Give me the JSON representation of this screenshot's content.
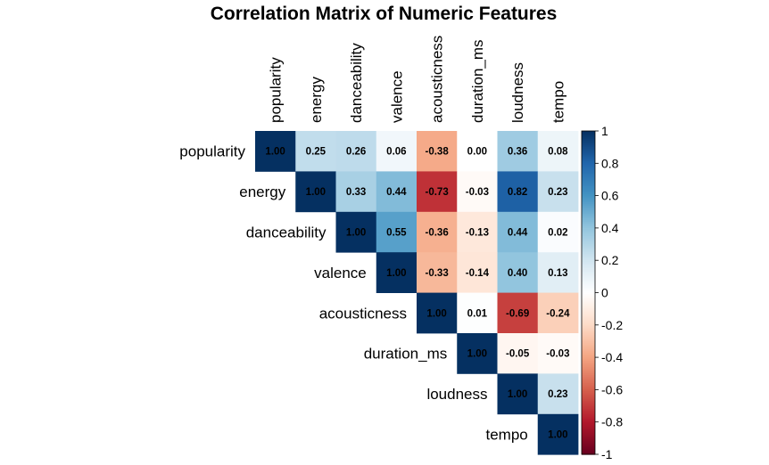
{
  "chart_data": {
    "type": "heatmap",
    "title": "Correlation Matrix of Numeric Features",
    "variables": [
      "popularity",
      "energy",
      "danceability",
      "valence",
      "acousticness",
      "duration_ms",
      "loudness",
      "tempo"
    ],
    "matrix": [
      [
        1.0,
        0.25,
        0.26,
        0.06,
        -0.38,
        0.0,
        0.36,
        0.08
      ],
      [
        0.25,
        1.0,
        0.33,
        0.44,
        -0.73,
        -0.03,
        0.82,
        0.23
      ],
      [
        0.26,
        0.33,
        1.0,
        0.55,
        -0.36,
        -0.13,
        0.44,
        0.02
      ],
      [
        0.06,
        0.44,
        0.55,
        1.0,
        -0.33,
        -0.14,
        0.4,
        0.13
      ],
      [
        -0.38,
        -0.73,
        -0.36,
        -0.33,
        1.0,
        0.01,
        -0.69,
        -0.24
      ],
      [
        0.0,
        -0.03,
        -0.13,
        -0.14,
        0.01,
        1.0,
        -0.05,
        -0.03
      ],
      [
        0.36,
        0.82,
        0.44,
        0.4,
        -0.69,
        -0.05,
        1.0,
        0.23
      ],
      [
        0.08,
        0.23,
        0.02,
        0.13,
        -0.24,
        -0.03,
        0.23,
        1.0
      ]
    ],
    "display": "upper",
    "value_labels": true,
    "color_scale": {
      "range": [
        -1,
        1
      ],
      "low_color": "#67001F",
      "mid_color": "#FFFFFF",
      "high_color": "#053061"
    },
    "colorbar_ticks": [
      "-1",
      "-0.8",
      "-0.6",
      "-0.4",
      "-0.2",
      "0",
      "0.2",
      "0.4",
      "0.6",
      "0.8",
      "1"
    ],
    "legend_position": "right"
  }
}
